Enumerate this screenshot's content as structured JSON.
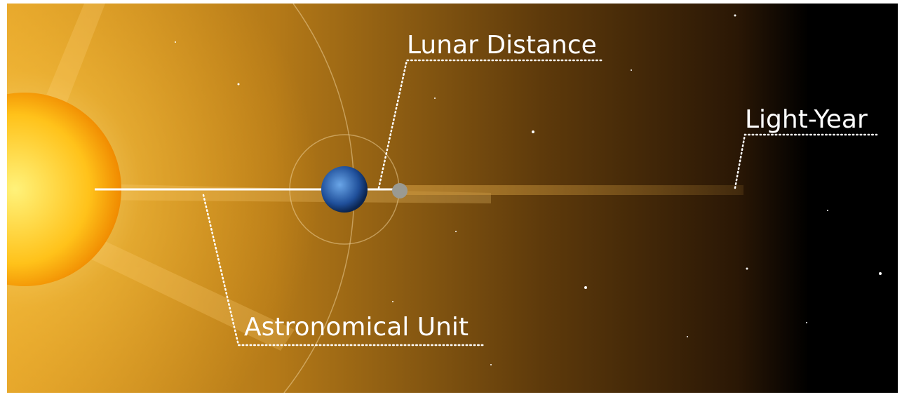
{
  "labels": {
    "lunar_distance": "Lunar Distance",
    "light_year": "Light-Year",
    "astronomical_unit": "Astronomical Unit"
  }
}
